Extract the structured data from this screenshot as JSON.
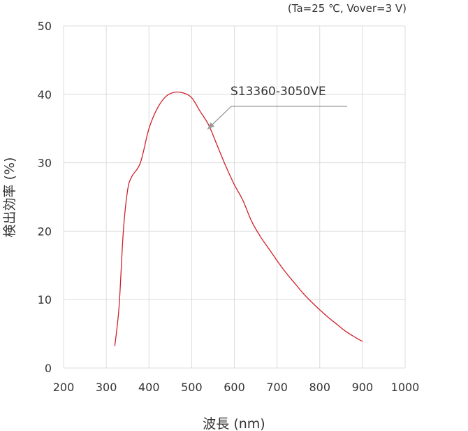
{
  "chart_data": {
    "type": "line",
    "conditions": "(Ta=25 ℃, Vover=3 V)",
    "xlabel": "波長 (nm)",
    "ylabel": "検出効率 (%)",
    "xlim": [
      200,
      1000
    ],
    "ylim": [
      0,
      50
    ],
    "xticks": [
      "200",
      "300",
      "400",
      "500",
      "600",
      "700",
      "800",
      "900",
      "1000"
    ],
    "yticks": [
      "0",
      "10",
      "20",
      "30",
      "40",
      "50"
    ],
    "grid": true,
    "series": [
      {
        "name": "S13360-3050VE",
        "color": "#d0202a",
        "x": [
          320,
          330,
          340,
          350,
          360,
          380,
          400,
          420,
          440,
          460,
          480,
          500,
          520,
          540,
          560,
          580,
          600,
          620,
          640,
          660,
          680,
          700,
          720,
          740,
          760,
          780,
          800,
          820,
          840,
          860,
          880,
          900
        ],
        "y": [
          3.2,
          9,
          20,
          26,
          28,
          30,
          35,
          38,
          39.7,
          40.3,
          40.2,
          39.5,
          37.5,
          35.5,
          32.5,
          29.5,
          26.8,
          24.5,
          21.5,
          19.3,
          17.5,
          15.7,
          14,
          12.5,
          11,
          9.7,
          8.5,
          7.4,
          6.4,
          5.4,
          4.6,
          3.9
        ]
      }
    ],
    "annotation": {
      "text": "S13360-3050VE",
      "arrow_to": [
        537,
        34.9
      ],
      "color": "#999999"
    }
  }
}
